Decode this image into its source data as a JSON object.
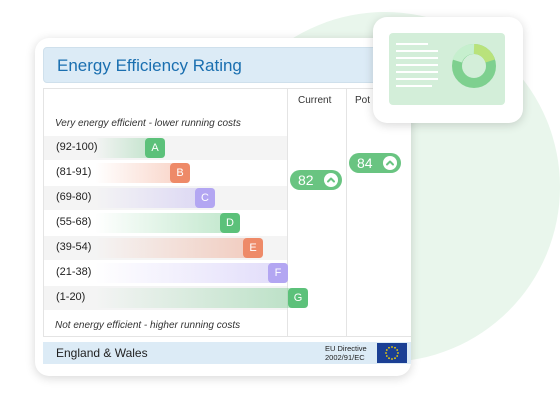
{
  "card": {
    "title": "Energy Efficiency Rating",
    "columns": {
      "current": "Current",
      "potential": "Pot"
    },
    "top_caption": "Very energy efficient - lower running costs",
    "bottom_caption": "Not energy efficient - higher running costs",
    "bands": [
      {
        "range": "(92-100)",
        "letter": "A",
        "color": "#5cc17a"
      },
      {
        "range": "(81-91)",
        "letter": "B",
        "color": "#ee8a68"
      },
      {
        "range": "(69-80)",
        "letter": "C",
        "color": "#b3a6f2"
      },
      {
        "range": "(55-68)",
        "letter": "D",
        "color": "#5cc17a"
      },
      {
        "range": "(39-54)",
        "letter": "E",
        "color": "#ee8a68"
      },
      {
        "range": "(21-38)",
        "letter": "F",
        "color": "#b3a6f2"
      },
      {
        "range": "(1-20)",
        "letter": "G",
        "color": "#5cc17a"
      }
    ],
    "current": {
      "value": "82",
      "icon": "chevron-up-icon"
    },
    "potential": {
      "value": "84",
      "icon": "chevron-up-icon"
    },
    "footer": {
      "region": "England & Wales",
      "directive_line1": "EU Directive",
      "directive_line2": "2002/91/EC",
      "flag_icon": "eu-flag-icon"
    }
  },
  "preview": {
    "icon": "donut-chart-icon"
  },
  "colors": {
    "accent": "#1a6fb0",
    "header_bg": "#dcebf6",
    "pill": "#69c481"
  }
}
